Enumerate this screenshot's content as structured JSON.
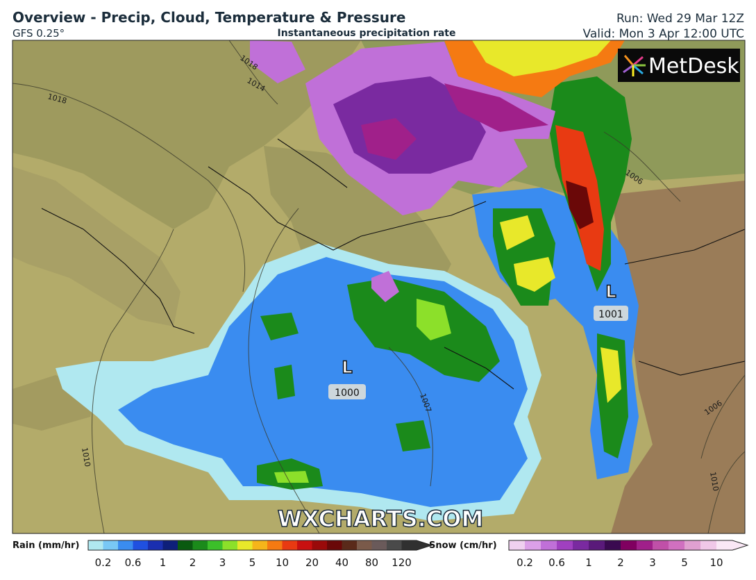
{
  "header": {
    "title": "Overview - Precip, Cloud, Temperature & Pressure",
    "model": "GFS 0.25°",
    "subtitle": "Instantaneous precipitation rate",
    "run": "Run: Wed 29 Mar 12Z",
    "valid": "Valid: Mon 3 Apr 12:00 UTC"
  },
  "map": {
    "logo": "MetDesk",
    "watermark": "WXCHARTS.COM",
    "isobar_labels": [
      "1018",
      "1014",
      "1018",
      "1006",
      "1007",
      "1010",
      "1006",
      "1010"
    ],
    "lows": [
      {
        "symbol": "L",
        "pressure": "1001"
      },
      {
        "symbol": "L",
        "pressure": "1000"
      }
    ]
  },
  "legend": {
    "rain": {
      "label": "Rain (mm/hr)",
      "ticks": [
        "0.2",
        "0.6",
        "1",
        "2",
        "3",
        "5",
        "10",
        "20",
        "40",
        "80",
        "120"
      ],
      "colors": [
        "#b0e8f0",
        "#79c8f5",
        "#3a8cf0",
        "#2050e0",
        "#1a2fb0",
        "#0e1f7a",
        "#0a5a10",
        "#1b8a1b",
        "#3cbf2a",
        "#8ce02a",
        "#e8e82a",
        "#f5b51a",
        "#f57a12",
        "#e83a12",
        "#c81010",
        "#9a0a0a",
        "#6a0808",
        "#5a2a1a",
        "#7a5a4a",
        "#6a5a5a",
        "#4a4a4a",
        "#303030"
      ]
    },
    "snow": {
      "label": "Snow (cm/hr)",
      "ticks": [
        "0.2",
        "0.6",
        "1",
        "2",
        "3",
        "5",
        "10"
      ],
      "colors": [
        "#f0d0f0",
        "#dca0e8",
        "#c070d8",
        "#a040c0",
        "#7a2aa0",
        "#5a1a7a",
        "#3a0a50",
        "#800060",
        "#a0208a",
        "#c050a8",
        "#d070c0",
        "#e0a0d0",
        "#f0c8e8",
        "#fae8f6"
      ]
    }
  }
}
